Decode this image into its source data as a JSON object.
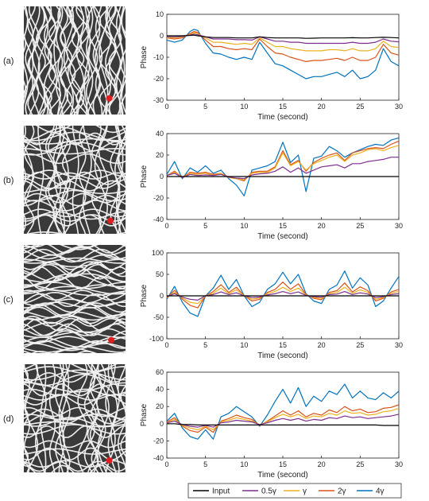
{
  "colors": {
    "Input": "#000000",
    "0.5γ": "#7e2f8e",
    "γ": "#edb120",
    "2γ": "#d95319",
    "4γ": "#0072bd",
    "pattern_light": "#efefef",
    "pattern_dark": "#3a3a3a",
    "marker": "#e02020"
  },
  "legend": {
    "placement": "bottom-right",
    "entries": [
      "Input",
      "0.5γ",
      "γ",
      "2γ",
      "4γ"
    ]
  },
  "chart_data": [
    {
      "type": "line",
      "row_label": "(a)",
      "image_style": "vertical",
      "marker": {
        "x": 0.84,
        "y": 0.85
      },
      "xlabel": "Time (second)",
      "ylabel": "Phase",
      "xlim": [
        0,
        30
      ],
      "ylim": [
        -30,
        10
      ],
      "xticks": [
        0,
        5,
        10,
        15,
        20,
        25,
        30
      ],
      "yticks": [
        -30,
        -20,
        -10,
        0,
        10
      ],
      "x": [
        0,
        1,
        2,
        3,
        3.5,
        4,
        5,
        6,
        7,
        8,
        9,
        10,
        11,
        12,
        13,
        14,
        15,
        16,
        17,
        18,
        19,
        20,
        21,
        22,
        23,
        24,
        25,
        26,
        27,
        28,
        29,
        30
      ],
      "series": [
        {
          "name": "Input",
          "values": [
            0,
            0,
            0,
            0.2,
            0.3,
            0,
            -0.5,
            -0.8,
            -0.8,
            -0.8,
            -1,
            -1,
            -1,
            -0.5,
            -0.8,
            -1,
            -1,
            -1,
            -1,
            -1.2,
            -1.1,
            -1,
            -1,
            -1,
            -1,
            -0.9,
            -1,
            -1,
            -0.8,
            -0.7,
            -0.8,
            -1
          ]
        },
        {
          "name": "0.5γ",
          "values": [
            -0.5,
            -0.5,
            -0.3,
            0.3,
            0.8,
            0.5,
            -0.5,
            -1.5,
            -1.5,
            -1.5,
            -1.8,
            -1.8,
            -2,
            -0.5,
            -1.5,
            -2.5,
            -2.5,
            -3,
            -3,
            -3.5,
            -3.5,
            -3.5,
            -3.5,
            -3.5,
            -3.5,
            -3,
            -3.5,
            -3.5,
            -3,
            -1.5,
            -2.5,
            -2.8
          ]
        },
        {
          "name": "γ",
          "values": [
            -0.8,
            -1,
            -0.5,
            0.5,
            1.5,
            1,
            -1,
            -3,
            -3,
            -3.5,
            -4,
            -3.5,
            -4,
            -1,
            -3,
            -5,
            -5,
            -6,
            -6.5,
            -7,
            -7,
            -7,
            -6.5,
            -6.5,
            -7,
            -6,
            -7,
            -7,
            -6,
            -2.5,
            -5,
            -5.5
          ]
        },
        {
          "name": "2γ",
          "values": [
            -1,
            -1.5,
            -1,
            1,
            2,
            1.5,
            -2,
            -5,
            -5,
            -6,
            -6.5,
            -6,
            -6.5,
            -1.5,
            -5,
            -8,
            -8.5,
            -10,
            -11,
            -12,
            -11.5,
            -11.5,
            -11,
            -10.5,
            -11.5,
            -10,
            -11.5,
            -11.5,
            -10,
            -4,
            -8,
            -9
          ]
        },
        {
          "name": "4γ",
          "values": [
            -2,
            -3,
            -2,
            2,
            3,
            2.5,
            -3.5,
            -8,
            -8.5,
            -10,
            -11,
            -10,
            -11,
            -3,
            -8,
            -13,
            -14,
            -16,
            -18,
            -20,
            -19,
            -19,
            -18,
            -17,
            -19,
            -16,
            -20,
            -19,
            -16,
            -6,
            -12,
            -14
          ]
        }
      ]
    },
    {
      "type": "line",
      "row_label": "(b)",
      "image_style": "mixed",
      "marker": {
        "x": 0.85,
        "y": 0.88
      },
      "xlabel": "Time (second)",
      "ylabel": "Phase",
      "xlim": [
        0,
        30
      ],
      "ylim": [
        -40,
        40
      ],
      "xticks": [
        0,
        5,
        10,
        15,
        20,
        25,
        30
      ],
      "yticks": [
        -40,
        -20,
        0,
        20,
        40
      ],
      "x": [
        0,
        1,
        2,
        3,
        4,
        5,
        6,
        7,
        8,
        9,
        10,
        11,
        12,
        13,
        14,
        15,
        16,
        17,
        18,
        19,
        20,
        21,
        22,
        23,
        24,
        25,
        26,
        27,
        28,
        29,
        30
      ],
      "series": [
        {
          "name": "Input",
          "values": [
            0,
            0,
            0,
            0,
            0,
            0,
            0,
            0,
            0,
            0,
            0,
            0,
            0,
            0,
            0,
            0,
            0,
            0,
            0,
            0,
            0,
            0,
            0,
            0,
            0,
            0,
            0,
            0,
            0,
            0,
            0
          ]
        },
        {
          "name": "0.5γ",
          "values": [
            1,
            3,
            -1,
            2,
            1,
            1.5,
            1,
            2,
            -0.5,
            -1.5,
            -2,
            1.5,
            2.5,
            3,
            5,
            9,
            4,
            8,
            3,
            6,
            9,
            10,
            11,
            8,
            12,
            12,
            14,
            15,
            16,
            18,
            18
          ]
        },
        {
          "name": "γ",
          "values": [
            1,
            4,
            -1,
            3,
            2,
            3,
            1,
            3,
            -1,
            -2,
            -3,
            3,
            4,
            4,
            8,
            22,
            10,
            14,
            6,
            12,
            15,
            18,
            20,
            14,
            20,
            22,
            25,
            26,
            24,
            27,
            29
          ]
        },
        {
          "name": "2γ",
          "values": [
            1,
            5,
            -1,
            4,
            3,
            4,
            2,
            3,
            -0.5,
            -2,
            -4,
            4,
            5,
            5,
            9,
            24,
            11,
            15,
            5,
            13,
            17,
            20,
            22,
            15,
            22,
            24,
            26,
            27,
            26,
            30,
            33
          ]
        },
        {
          "name": "4γ",
          "values": [
            2,
            14,
            -2,
            8,
            4,
            10,
            3,
            6,
            -2,
            -8,
            -18,
            6,
            8,
            10,
            14,
            32,
            13,
            20,
            -14,
            17,
            19,
            28,
            24,
            18,
            22,
            25,
            28,
            30,
            29,
            34,
            36
          ]
        }
      ]
    },
    {
      "type": "line",
      "row_label": "(c)",
      "image_style": "horizontal",
      "marker": {
        "x": 0.86,
        "y": 0.88
      },
      "xlabel": "Time (second)",
      "ylabel": "Phase",
      "xlim": [
        0,
        30
      ],
      "ylim": [
        -100,
        100
      ],
      "xticks": [
        0,
        5,
        10,
        15,
        20,
        25,
        30
      ],
      "yticks": [
        -100,
        -50,
        0,
        50,
        100
      ],
      "x": [
        0,
        1,
        2,
        3,
        4,
        5,
        6,
        7,
        8,
        9,
        10,
        11,
        12,
        13,
        14,
        15,
        16,
        17,
        18,
        19,
        20,
        21,
        22,
        23,
        24,
        25,
        26,
        27,
        28,
        29,
        30
      ],
      "series": [
        {
          "name": "Input",
          "values": [
            0,
            0,
            0,
            0,
            0,
            0,
            0,
            0,
            0,
            0,
            0,
            0,
            0,
            0,
            0,
            0,
            0,
            0,
            0,
            0,
            0,
            0,
            0,
            0,
            0,
            0,
            0,
            0,
            0,
            0,
            0
          ]
        },
        {
          "name": "0.5γ",
          "values": [
            -2,
            5,
            -3,
            -8,
            -10,
            0,
            3,
            9,
            3,
            7,
            0,
            -4,
            -3,
            2,
            5,
            10,
            5,
            9,
            1,
            -2,
            -3,
            3,
            4,
            10,
            3,
            7,
            4,
            -4,
            -2,
            3,
            5
          ]
        },
        {
          "name": "γ",
          "values": [
            -3,
            8,
            -5,
            -15,
            -18,
            0,
            6,
            18,
            5,
            14,
            0,
            -8,
            -5,
            5,
            10,
            20,
            10,
            18,
            2,
            -4,
            -6,
            5,
            8,
            20,
            6,
            14,
            8,
            -8,
            -4,
            6,
            10
          ]
        },
        {
          "name": "2γ",
          "values": [
            -5,
            13,
            -8,
            -22,
            -28,
            0,
            10,
            26,
            8,
            20,
            0,
            -12,
            -8,
            8,
            15,
            32,
            15,
            28,
            3,
            -6,
            -9,
            8,
            12,
            30,
            9,
            21,
            12,
            -12,
            -6,
            9,
            15
          ]
        },
        {
          "name": "4γ",
          "values": [
            -8,
            22,
            -15,
            -40,
            -48,
            0,
            18,
            48,
            15,
            38,
            0,
            -25,
            -15,
            15,
            28,
            55,
            28,
            50,
            5,
            -12,
            -18,
            15,
            25,
            58,
            18,
            42,
            25,
            -25,
            -12,
            18,
            45
          ]
        }
      ]
    },
    {
      "type": "line",
      "row_label": "(d)",
      "image_style": "mixed",
      "marker": {
        "x": 0.84,
        "y": 0.89
      },
      "xlabel": "Time (second)",
      "ylabel": "Phase",
      "xlim": [
        0,
        30
      ],
      "ylim": [
        -40,
        60
      ],
      "xticks": [
        0,
        5,
        10,
        15,
        20,
        25,
        30
      ],
      "yticks": [
        -40,
        -20,
        0,
        20,
        40,
        60
      ],
      "x": [
        0,
        1,
        2,
        3,
        4,
        5,
        6,
        7,
        8,
        9,
        10,
        11,
        12,
        13,
        14,
        15,
        16,
        17,
        18,
        19,
        20,
        21,
        22,
        23,
        24,
        25,
        26,
        27,
        28,
        29,
        30
      ],
      "series": [
        {
          "name": "Input",
          "values": [
            0,
            0,
            -1,
            -1,
            -1.5,
            -1.5,
            -1.5,
            -1.5,
            -1.5,
            -1.5,
            -1.5,
            -1.5,
            -1.5,
            -1.5,
            -1.5,
            -1.5,
            -1.5,
            -1.5,
            -1.5,
            -1.5,
            -1.5,
            -1.5,
            -1.5,
            -1.5,
            -1.5,
            -1.5,
            -1.5,
            -1.5,
            -2,
            -2,
            -2
          ]
        },
        {
          "name": "0.5γ",
          "values": [
            1,
            3,
            -1,
            -3,
            -4,
            -2,
            -4,
            1,
            2,
            4,
            3,
            2,
            -1,
            1,
            4,
            6,
            4,
            6,
            3,
            5,
            4,
            7,
            6,
            9,
            7,
            8,
            6,
            7,
            8,
            9,
            11
          ]
        },
        {
          "name": "γ",
          "values": [
            1,
            5,
            -2,
            -5,
            -7,
            -3,
            -7,
            2,
            4,
            7,
            5,
            3,
            -1,
            2,
            7,
            11,
            8,
            11,
            6,
            9,
            8,
            12,
            10,
            15,
            12,
            13,
            10,
            11,
            14,
            15,
            18
          ]
        },
        {
          "name": "2γ",
          "values": [
            2,
            7,
            -3,
            -8,
            -10,
            -4,
            -10,
            3,
            6,
            10,
            7,
            5,
            -2,
            3,
            9,
            15,
            10,
            15,
            8,
            12,
            10,
            16,
            13,
            20,
            15,
            17,
            13,
            14,
            18,
            19,
            22
          ]
        },
        {
          "name": "4γ",
          "values": [
            3,
            12,
            -5,
            -15,
            -18,
            -7,
            -18,
            8,
            12,
            20,
            14,
            8,
            -3,
            10,
            26,
            40,
            24,
            42,
            20,
            32,
            26,
            38,
            34,
            46,
            30,
            38,
            30,
            28,
            36,
            30,
            38
          ]
        }
      ]
    }
  ]
}
